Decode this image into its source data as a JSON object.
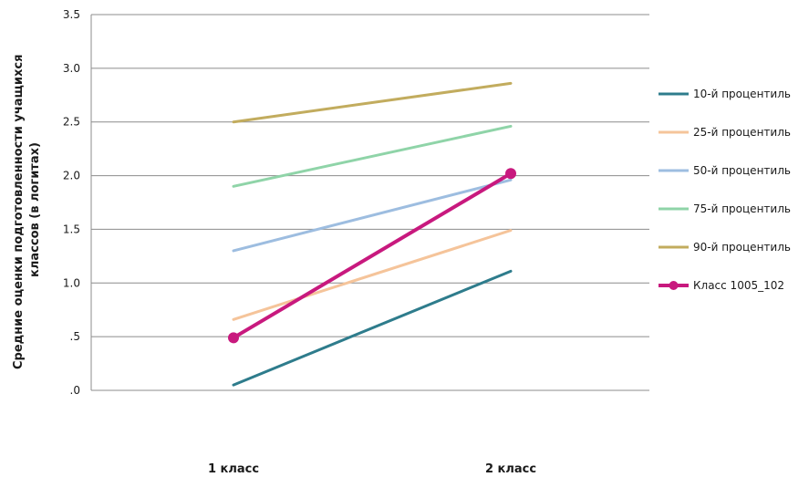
{
  "chart_data": {
    "type": "line",
    "categories": [
      "1 класс",
      "2 класс"
    ],
    "ylabel": [
      "Средние оценки подготовленности  учащихся",
      "классов (в логитах)"
    ],
    "ylim": [
      0,
      3.5
    ],
    "yticks": [
      {
        "value": 0,
        "label": ".0"
      },
      {
        "value": 0.5,
        "label": ".5"
      },
      {
        "value": 1.0,
        "label": "1.0"
      },
      {
        "value": 1.5,
        "label": "1.5"
      },
      {
        "value": 2.0,
        "label": "2.0"
      },
      {
        "value": 2.5,
        "label": "2.5"
      },
      {
        "value": 3.0,
        "label": "3.0"
      },
      {
        "value": 3.5,
        "label": "3.5"
      }
    ],
    "grid": true,
    "legend_position": "right",
    "series": [
      {
        "name": "10-й процентиль",
        "values": [
          0.05,
          1.11
        ],
        "color": "#2e7c8c",
        "markers": false,
        "bold": false
      },
      {
        "name": "25-й процентиль",
        "values": [
          0.66,
          1.49
        ],
        "color": "#f5c49a",
        "markers": false,
        "bold": false
      },
      {
        "name": "50-й процентиль",
        "values": [
          1.3,
          1.96
        ],
        "color": "#9dbde0",
        "markers": false,
        "bold": false
      },
      {
        "name": "75-й процентиль",
        "values": [
          1.9,
          2.46
        ],
        "color": "#8fd4a8",
        "markers": false,
        "bold": false
      },
      {
        "name": "90-й процентиль",
        "values": [
          2.5,
          2.86
        ],
        "color": "#c2ac5e",
        "markers": false,
        "bold": false
      },
      {
        "name": "Класс 1005_102",
        "values": [
          0.49,
          2.02
        ],
        "color": "#c8197e",
        "markers": true,
        "bold": true
      }
    ]
  }
}
